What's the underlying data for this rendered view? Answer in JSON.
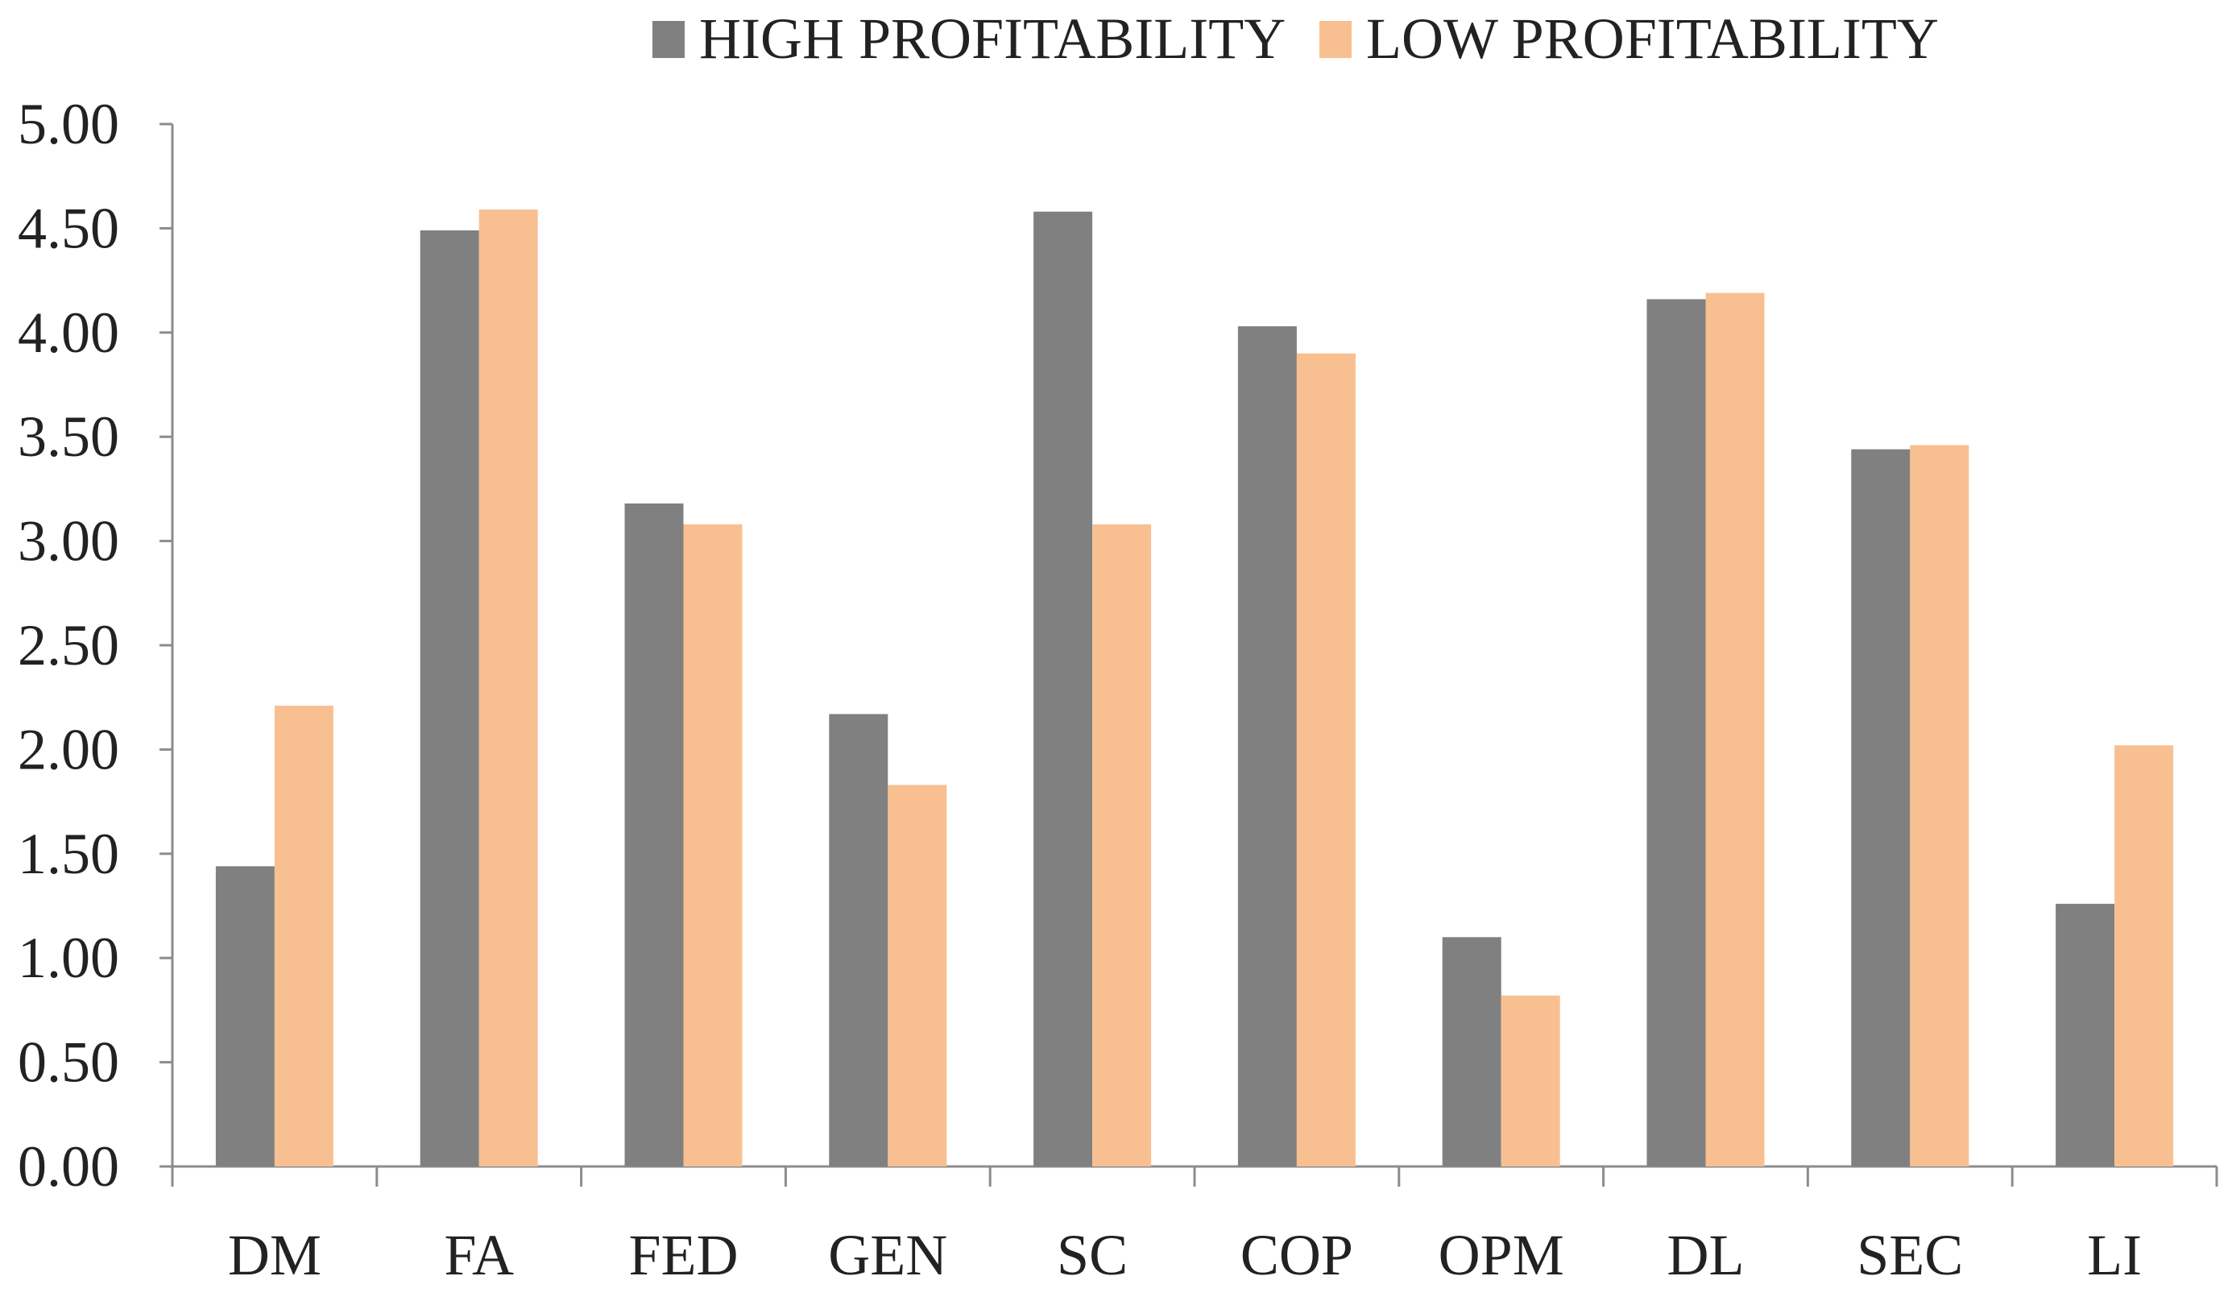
{
  "chart_data": {
    "type": "bar",
    "title": "",
    "xlabel": "",
    "ylabel": "",
    "ylim": [
      0,
      5
    ],
    "yticks": [
      "0.00",
      "0.50",
      "1.00",
      "1.50",
      "2.00",
      "2.50",
      "3.00",
      "3.50",
      "4.00",
      "4.50",
      "5.00"
    ],
    "grid": false,
    "legend_position": "top-center",
    "categories": [
      "DM",
      "FA",
      "FED",
      "GEN",
      "SC",
      "COP",
      "OPM",
      "DL",
      "SEC",
      "LI"
    ],
    "series": [
      {
        "name": "HIGH PROFITABILITY",
        "color": "#808080",
        "values": [
          1.44,
          4.49,
          3.18,
          2.17,
          4.58,
          4.03,
          1.1,
          4.16,
          3.44,
          1.26
        ]
      },
      {
        "name": "LOW PROFITABILITY",
        "color": "#F8C091",
        "values": [
          2.21,
          4.59,
          3.08,
          1.83,
          3.08,
          3.9,
          0.82,
          4.19,
          3.46,
          2.02
        ]
      }
    ]
  }
}
